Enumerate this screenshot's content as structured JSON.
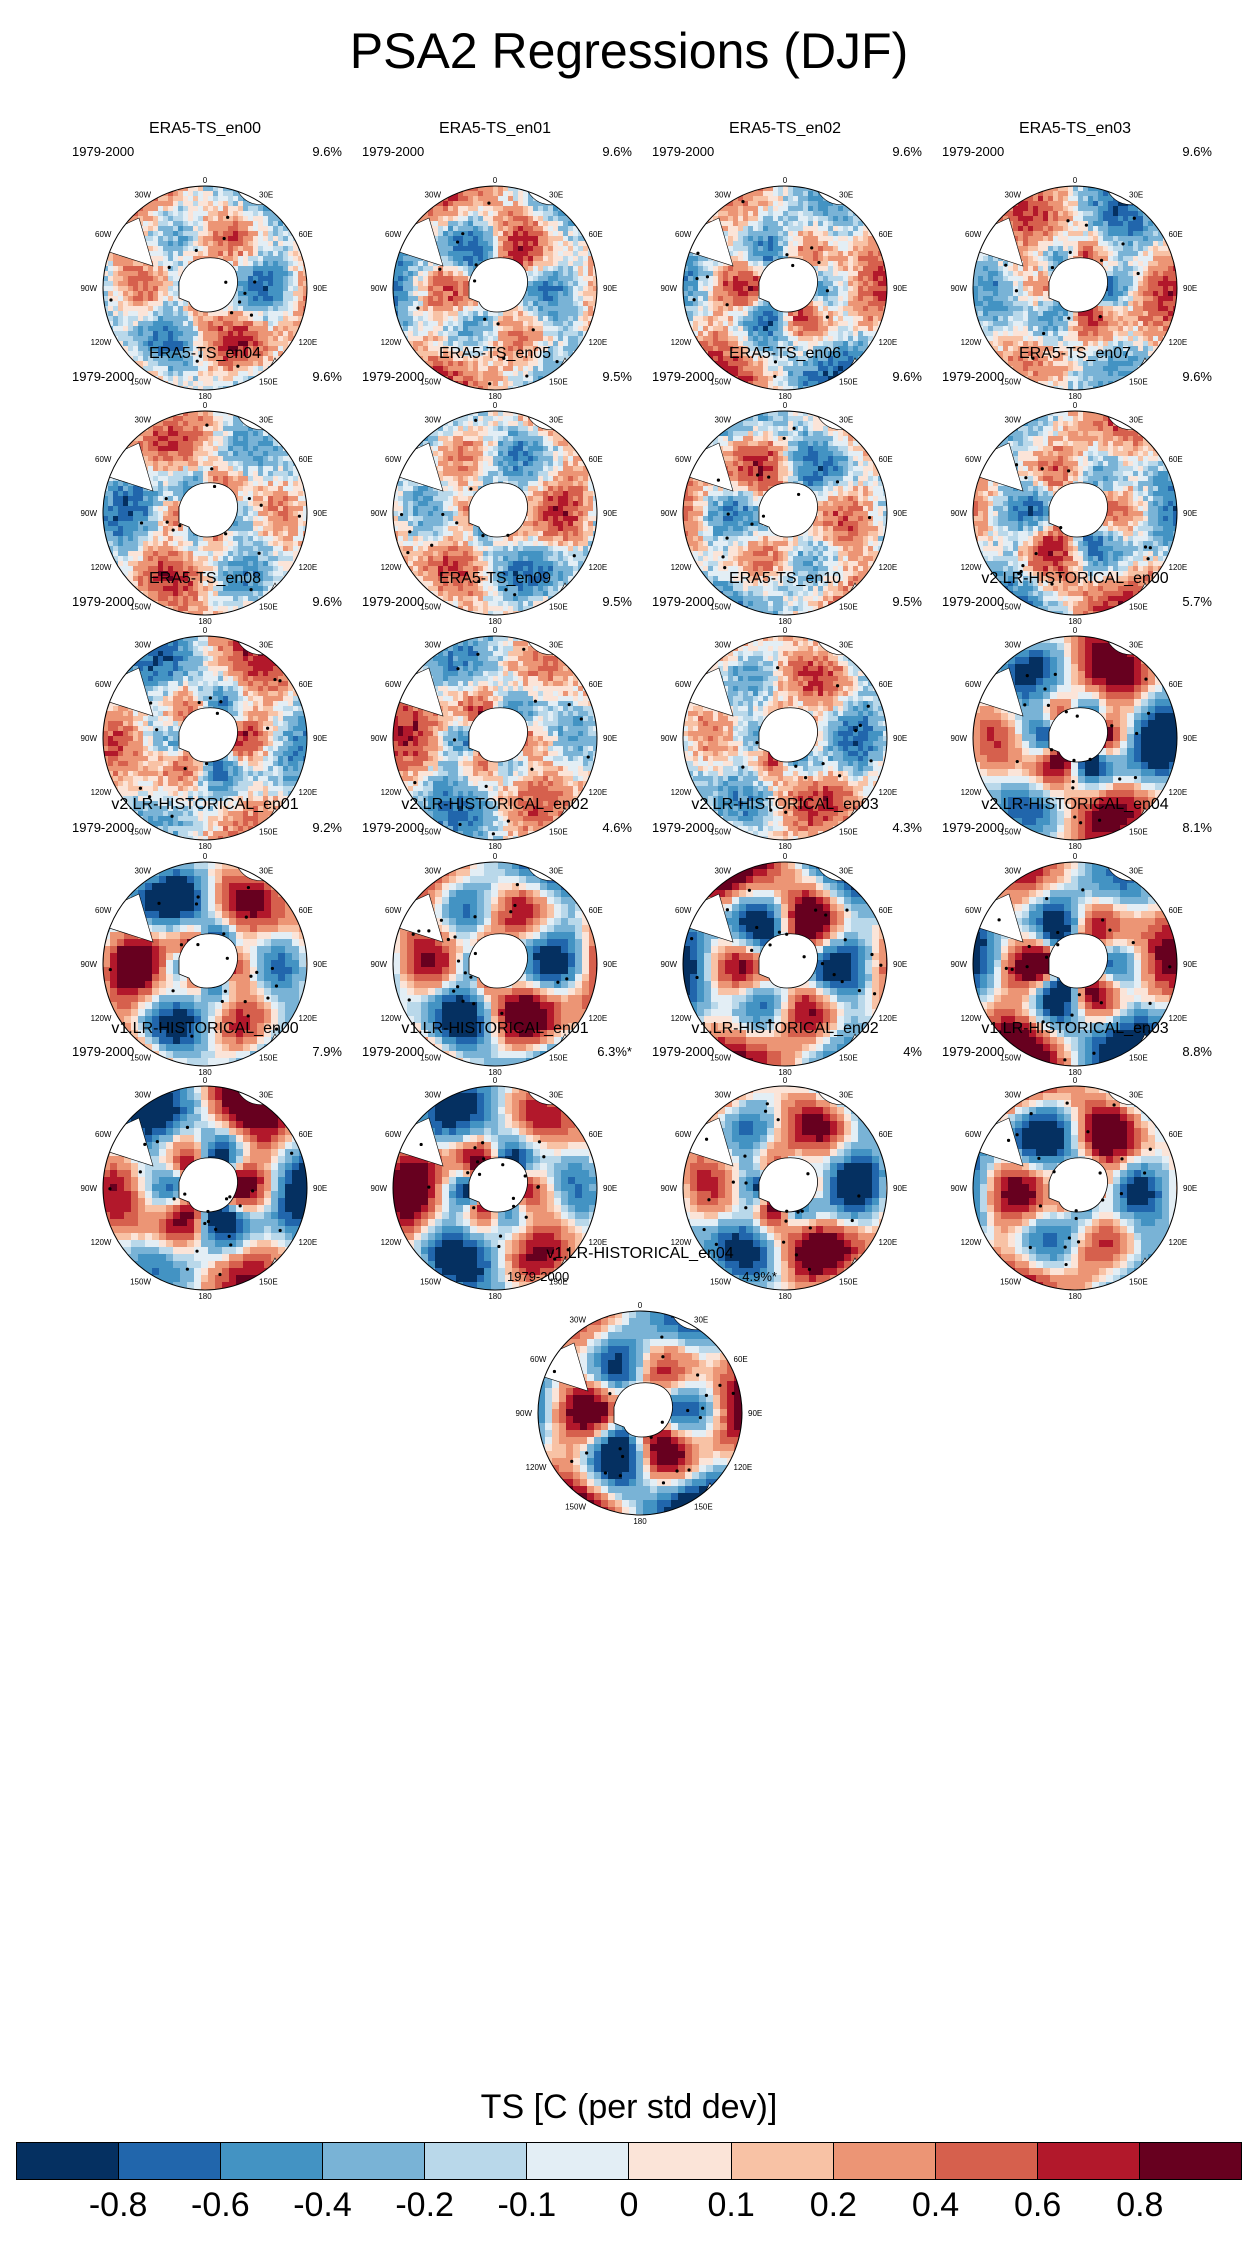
{
  "title": "PSA2 Regressions (DJF)",
  "colorbar": {
    "title": "TS [C (per std dev)]",
    "ticks": [
      "-0.8",
      "-0.6",
      "-0.4",
      "-0.2",
      "-0.1",
      "0",
      "0.1",
      "0.2",
      "0.4",
      "0.6",
      "0.8"
    ],
    "colors": [
      "#053061",
      "#2166ac",
      "#4393c3",
      "#79b3d6",
      "#b9d8ea",
      "#e3eef5",
      "#fbe4d8",
      "#f8c2a5",
      "#ec9575",
      "#d6604d",
      "#b2182b",
      "#67001f"
    ]
  },
  "lon_labels": [
    "0",
    "30E",
    "60E",
    "90E",
    "120E",
    "150E",
    "180",
    "150W",
    "120W",
    "90W",
    "60W",
    "30W"
  ],
  "chart_data": {
    "type": "heatmap",
    "variable": "TS",
    "units": "C (per std dev)",
    "levels": [
      -0.8,
      -0.6,
      -0.4,
      -0.2,
      -0.1,
      0,
      0.1,
      0.2,
      0.4,
      0.6,
      0.8
    ],
    "panels": [
      {
        "title": "ERA5-TS_en00",
        "period": "1979-2000",
        "pct": "9.6%",
        "style": "obs",
        "seed": 11
      },
      {
        "title": "ERA5-TS_en01",
        "period": "1979-2000",
        "pct": "9.6%",
        "style": "obs",
        "seed": 12
      },
      {
        "title": "ERA5-TS_en02",
        "period": "1979-2000",
        "pct": "9.6%",
        "style": "obs",
        "seed": 13
      },
      {
        "title": "ERA5-TS_en03",
        "period": "1979-2000",
        "pct": "9.6%",
        "style": "obs",
        "seed": 14
      },
      {
        "title": "ERA5-TS_en04",
        "period": "1979-2000",
        "pct": "9.6%",
        "style": "obs",
        "seed": 15
      },
      {
        "title": "ERA5-TS_en05",
        "period": "1979-2000",
        "pct": "9.5%",
        "style": "obs",
        "seed": 16
      },
      {
        "title": "ERA5-TS_en06",
        "period": "1979-2000",
        "pct": "9.6%",
        "style": "obs",
        "seed": 17
      },
      {
        "title": "ERA5-TS_en07",
        "period": "1979-2000",
        "pct": "9.6%",
        "style": "obs",
        "seed": 18
      },
      {
        "title": "ERA5-TS_en08",
        "period": "1979-2000",
        "pct": "9.6%",
        "style": "obs",
        "seed": 19
      },
      {
        "title": "ERA5-TS_en09",
        "period": "1979-2000",
        "pct": "9.5%",
        "style": "obs",
        "seed": 20
      },
      {
        "title": "ERA5-TS_en10",
        "period": "1979-2000",
        "pct": "9.5%",
        "style": "obs",
        "seed": 21
      },
      {
        "title": "v2.LR-HISTORICAL_en00",
        "period": "1979-2000",
        "pct": "5.7%",
        "style": "model",
        "seed": 31
      },
      {
        "title": "v2.LR-HISTORICAL_en01",
        "period": "1979-2000",
        "pct": "9.2%",
        "style": "model",
        "seed": 32
      },
      {
        "title": "v2.LR-HISTORICAL_en02",
        "period": "1979-2000",
        "pct": "4.6%",
        "style": "model",
        "seed": 33
      },
      {
        "title": "v2.LR-HISTORICAL_en03",
        "period": "1979-2000",
        "pct": "4.3%",
        "style": "model",
        "seed": 34
      },
      {
        "title": "v2.LR-HISTORICAL_en04",
        "period": "1979-2000",
        "pct": "8.1%",
        "style": "model",
        "seed": 35
      },
      {
        "title": "v1.LR-HISTORICAL_en00",
        "period": "1979-2000",
        "pct": "7.9%",
        "style": "model",
        "seed": 41
      },
      {
        "title": "v1.LR-HISTORICAL_en01",
        "period": "1979-2000",
        "pct": "6.3%*",
        "style": "model",
        "seed": 42
      },
      {
        "title": "v1.LR-HISTORICAL_en02",
        "period": "1979-2000",
        "pct": "4%",
        "style": "model",
        "seed": 43
      },
      {
        "title": "v1.LR-HISTORICAL_en03",
        "period": "1979-2000",
        "pct": "8.8%",
        "style": "model",
        "seed": 44
      },
      {
        "title": "v1.LR-HISTORICAL_en04",
        "period": "1979-2000",
        "pct": "4.9%*",
        "style": "model",
        "seed": 45
      }
    ]
  }
}
